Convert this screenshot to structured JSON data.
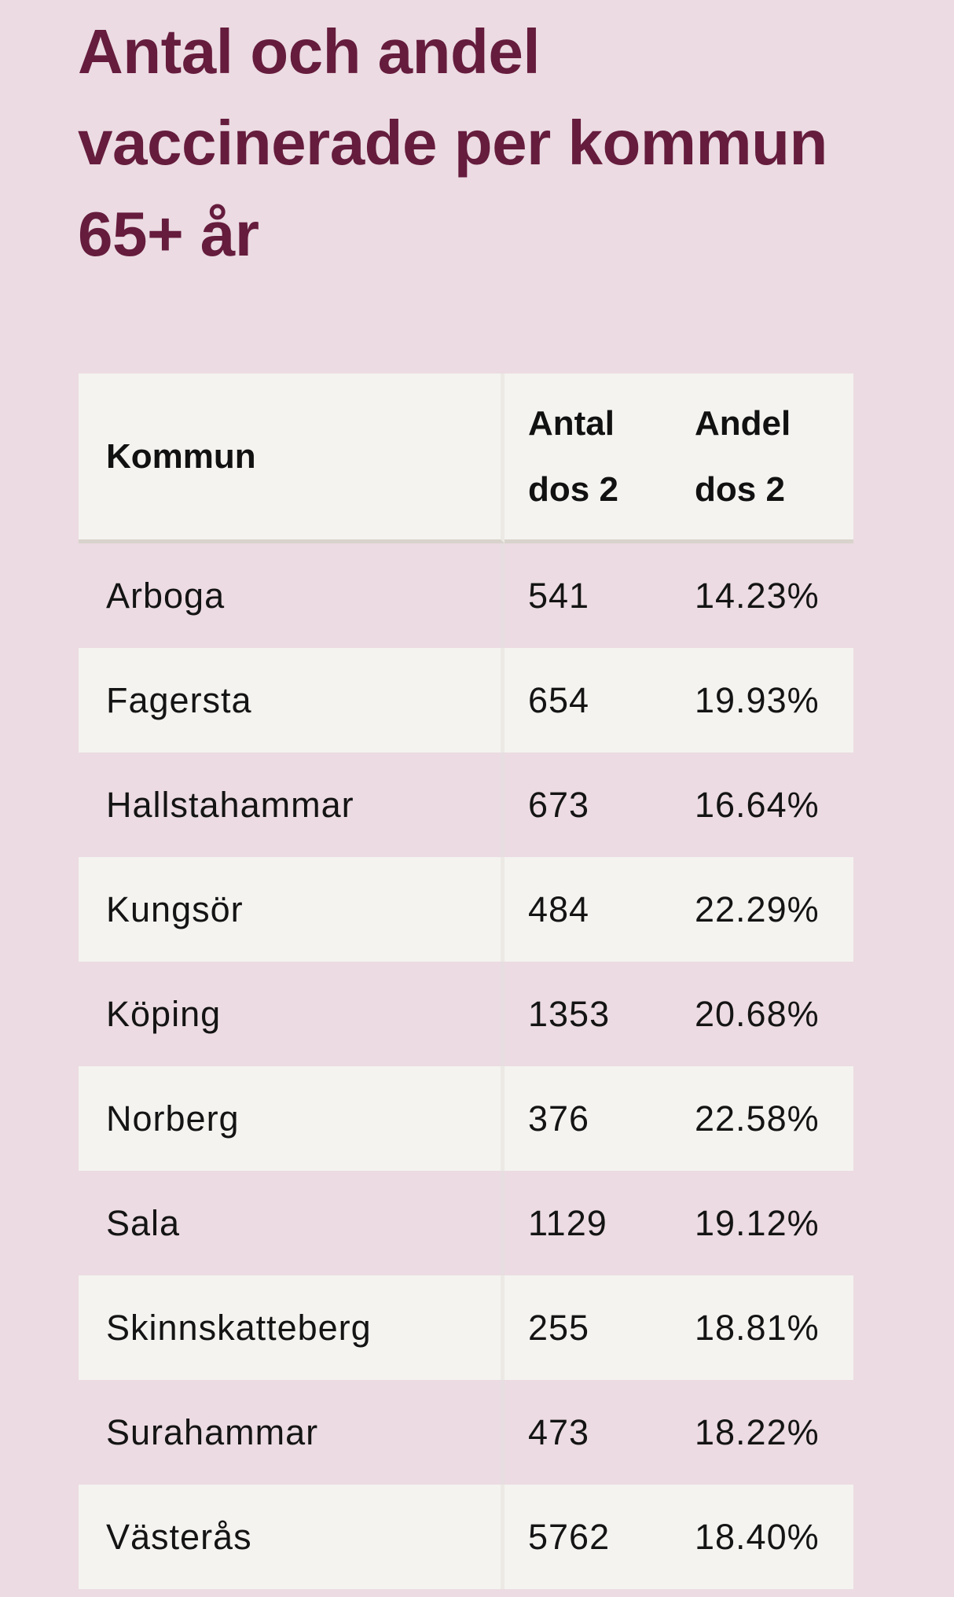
{
  "title_lines": [
    "Antal och andel",
    "vaccinerade per kommun",
    "65+ år"
  ],
  "colors": {
    "background": "#ecdbe2",
    "title": "#651c3d",
    "row_light": "#f4f3f0"
  },
  "table": {
    "headers": {
      "kommun": [
        "Kommun"
      ],
      "antal": [
        "Antal",
        "dos 2"
      ],
      "andel": [
        "Andel",
        "dos 2"
      ]
    },
    "rows": [
      {
        "kommun": "Arboga",
        "antal": "541",
        "andel": "14.23%"
      },
      {
        "kommun": "Fagersta",
        "antal": "654",
        "andel": "19.93%"
      },
      {
        "kommun": "Hallstahammar",
        "antal": "673",
        "andel": "16.64%"
      },
      {
        "kommun": "Kungsör",
        "antal": "484",
        "andel": "22.29%"
      },
      {
        "kommun": "Köping",
        "antal": "1353",
        "andel": "20.68%"
      },
      {
        "kommun": "Norberg",
        "antal": "376",
        "andel": "22.58%"
      },
      {
        "kommun": "Sala",
        "antal": "1129",
        "andel": "19.12%"
      },
      {
        "kommun": "Skinnskatteberg",
        "antal": "255",
        "andel": "18.81%"
      },
      {
        "kommun": "Surahammar",
        "antal": "473",
        "andel": "18.22%"
      },
      {
        "kommun": "Västerås",
        "antal": "5762",
        "andel": "18.40%"
      }
    ]
  }
}
